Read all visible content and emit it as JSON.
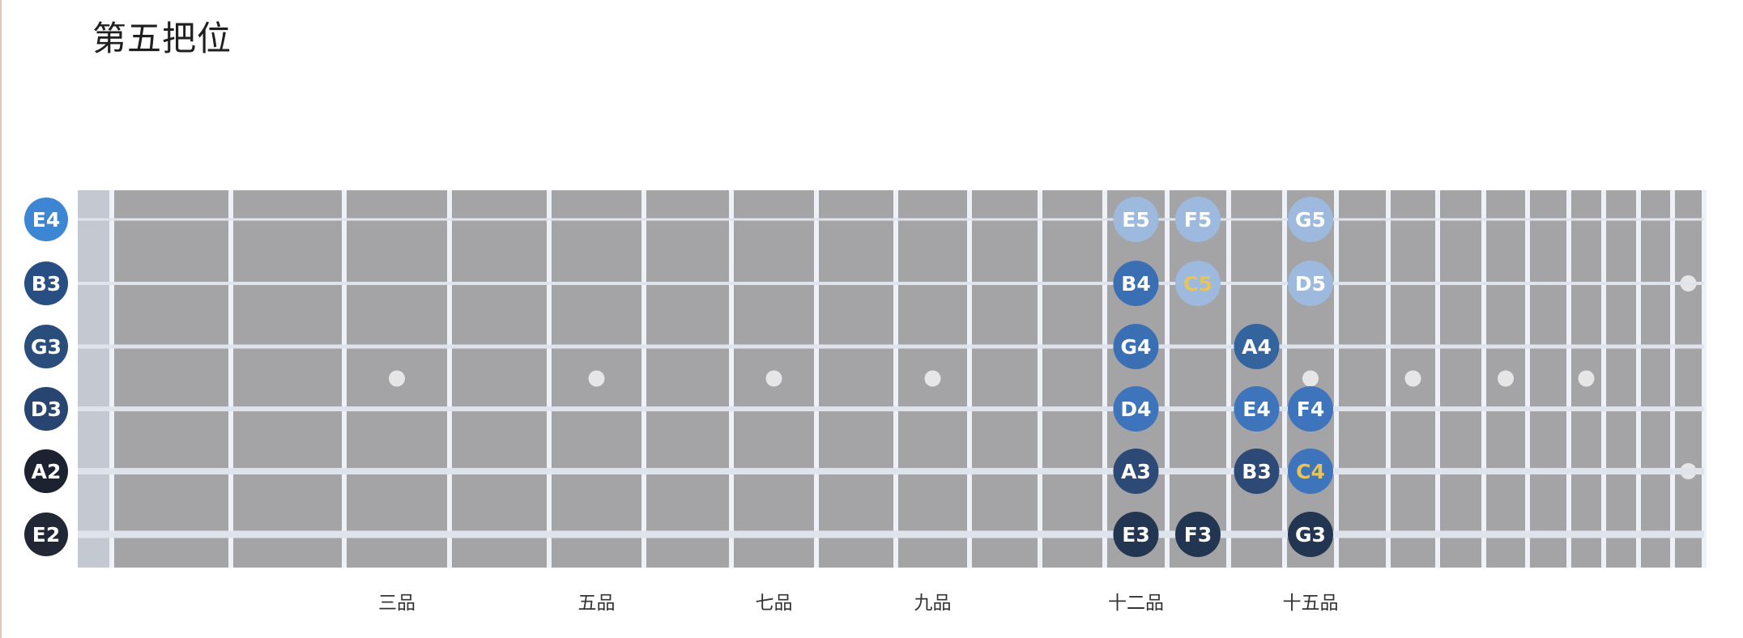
{
  "page": {
    "title": "第五把位"
  },
  "colors": {
    "board": "#a4a4a6",
    "board_left": "#c4c8d0",
    "fret": "#eef1f7",
    "string": "#dfe3ec",
    "inlay": "#e6e6e6",
    "tick_text": "#333333",
    "highlight_text": "#e6c45a"
  },
  "open_strings": [
    {
      "label": "E4",
      "color": "#3d86d3"
    },
    {
      "label": "B3",
      "color": "#274f84"
    },
    {
      "label": "G3",
      "color": "#2a4e7c"
    },
    {
      "label": "D3",
      "color": "#284470"
    },
    {
      "label": "A2",
      "color": "#1d2230"
    },
    {
      "label": "E2",
      "color": "#212735"
    }
  ],
  "fret_labels": [
    {
      "fret": 3,
      "label": "三品"
    },
    {
      "fret": 5,
      "label": "五品"
    },
    {
      "fret": 7,
      "label": "七品"
    },
    {
      "fret": 9,
      "label": "九品"
    },
    {
      "fret": 12,
      "label": "十二品"
    },
    {
      "fret": 15,
      "label": "十五品"
    }
  ],
  "inlays": {
    "single": [
      3,
      5,
      7,
      9,
      15,
      17,
      19,
      21
    ],
    "double": [
      24
    ]
  },
  "notes": [
    {
      "label": "E5",
      "string": 1,
      "fret": 12,
      "color": "#9db9dd",
      "text_color": "#ffffff"
    },
    {
      "label": "F5",
      "string": 1,
      "fret": 13,
      "color": "#9db9dd",
      "text_color": "#ffffff"
    },
    {
      "label": "G5",
      "string": 1,
      "fret": 15,
      "color": "#9db9dd",
      "text_color": "#ffffff"
    },
    {
      "label": "B4",
      "string": 2,
      "fret": 12,
      "color": "#3b6fb3",
      "text_color": "#ffffff"
    },
    {
      "label": "C5",
      "string": 2,
      "fret": 13,
      "color": "#9db9dd",
      "text_color": "#e6c45a"
    },
    {
      "label": "D5",
      "string": 2,
      "fret": 15,
      "color": "#9db9dd",
      "text_color": "#ffffff"
    },
    {
      "label": "G4",
      "string": 3,
      "fret": 12,
      "color": "#3b6fb3",
      "text_color": "#ffffff"
    },
    {
      "label": "A4",
      "string": 3,
      "fret": 14,
      "color": "#34649e",
      "text_color": "#ffffff"
    },
    {
      "label": "D4",
      "string": 4,
      "fret": 12,
      "color": "#3d74bb",
      "text_color": "#ffffff"
    },
    {
      "label": "E4",
      "string": 4,
      "fret": 14,
      "color": "#3d74bb",
      "text_color": "#ffffff"
    },
    {
      "label": "F4",
      "string": 4,
      "fret": 15,
      "color": "#3d74bb",
      "text_color": "#ffffff"
    },
    {
      "label": "A3",
      "string": 5,
      "fret": 12,
      "color": "#2c4a75",
      "text_color": "#ffffff"
    },
    {
      "label": "B3",
      "string": 5,
      "fret": 14,
      "color": "#2c4a75",
      "text_color": "#ffffff"
    },
    {
      "label": "C4",
      "string": 5,
      "fret": 15,
      "color": "#3d74bb",
      "text_color": "#e6c45a"
    },
    {
      "label": "E3",
      "string": 6,
      "fret": 12,
      "color": "#223652",
      "text_color": "#ffffff"
    },
    {
      "label": "F3",
      "string": 6,
      "fret": 13,
      "color": "#223652",
      "text_color": "#ffffff"
    },
    {
      "label": "G3",
      "string": 6,
      "fret": 15,
      "color": "#223652",
      "text_color": "#ffffff"
    }
  ]
}
